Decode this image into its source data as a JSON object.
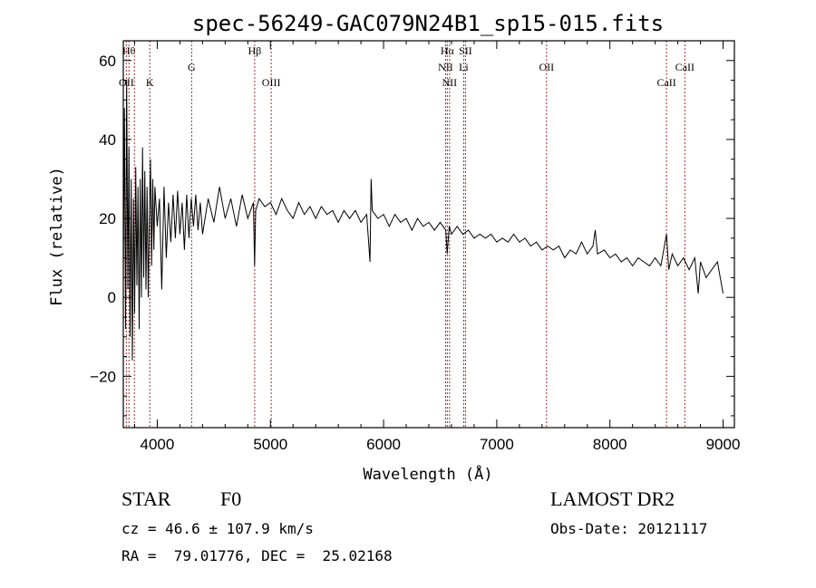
{
  "chart_data": {
    "type": "line",
    "title": "spec-56249-GAC079N24B1_sp15-015.fits",
    "xlabel": "Wavelength (Å)",
    "ylabel": "Flux (relative)",
    "xlim": [
      3700,
      9100
    ],
    "ylim": [
      -33,
      65
    ],
    "xticks": [
      4000,
      5000,
      6000,
      7000,
      8000,
      9000
    ],
    "yticks": [
      -20,
      0,
      20,
      40,
      60
    ],
    "grid": false,
    "series": [
      {
        "values": [
          [
            3700,
            5
          ],
          [
            3710,
            48
          ],
          [
            3720,
            -8
          ],
          [
            3730,
            55
          ],
          [
            3740,
            2
          ],
          [
            3750,
            38
          ],
          [
            3760,
            -10
          ],
          [
            3770,
            30
          ],
          [
            3780,
            -16
          ],
          [
            3790,
            25
          ],
          [
            3800,
            -4
          ],
          [
            3810,
            33
          ],
          [
            3820,
            3
          ],
          [
            3830,
            28
          ],
          [
            3840,
            -8
          ],
          [
            3850,
            30
          ],
          [
            3860,
            0
          ],
          [
            3870,
            38
          ],
          [
            3880,
            5
          ],
          [
            3890,
            32
          ],
          [
            3900,
            2
          ],
          [
            3910,
            28
          ],
          [
            3920,
            0
          ],
          [
            3930,
            20
          ],
          [
            3940,
            35
          ],
          [
            3950,
            8
          ],
          [
            3960,
            30
          ],
          [
            3970,
            12
          ],
          [
            3980,
            28
          ],
          [
            4000,
            18
          ],
          [
            4020,
            25
          ],
          [
            4040,
            2
          ],
          [
            4060,
            28
          ],
          [
            4080,
            10
          ],
          [
            4100,
            24
          ],
          [
            4120,
            14
          ],
          [
            4140,
            26
          ],
          [
            4160,
            15
          ],
          [
            4180,
            27
          ],
          [
            4200,
            16
          ],
          [
            4220,
            24
          ],
          [
            4240,
            12
          ],
          [
            4260,
            26
          ],
          [
            4280,
            15
          ],
          [
            4300,
            25
          ],
          [
            4320,
            18
          ],
          [
            4340,
            26
          ],
          [
            4360,
            17
          ],
          [
            4380,
            24
          ],
          [
            4400,
            16
          ],
          [
            4450,
            25
          ],
          [
            4500,
            19
          ],
          [
            4550,
            28
          ],
          [
            4600,
            20
          ],
          [
            4650,
            25
          ],
          [
            4700,
            18
          ],
          [
            4750,
            26
          ],
          [
            4800,
            20
          ],
          [
            4850,
            24
          ],
          [
            4860,
            8
          ],
          [
            4870,
            22
          ],
          [
            4900,
            25
          ],
          [
            4950,
            23
          ],
          [
            5000,
            24
          ],
          [
            5050,
            21
          ],
          [
            5100,
            25
          ],
          [
            5150,
            22
          ],
          [
            5200,
            20
          ],
          [
            5250,
            24
          ],
          [
            5300,
            21
          ],
          [
            5350,
            23
          ],
          [
            5400,
            20
          ],
          [
            5450,
            23
          ],
          [
            5500,
            21
          ],
          [
            5550,
            22
          ],
          [
            5600,
            19
          ],
          [
            5650,
            22
          ],
          [
            5700,
            20
          ],
          [
            5750,
            22
          ],
          [
            5800,
            19
          ],
          [
            5850,
            21
          ],
          [
            5880,
            9
          ],
          [
            5890,
            30
          ],
          [
            5900,
            22
          ],
          [
            5950,
            20
          ],
          [
            6000,
            21
          ],
          [
            6050,
            18
          ],
          [
            6100,
            21
          ],
          [
            6150,
            19
          ],
          [
            6200,
            20
          ],
          [
            6250,
            17
          ],
          [
            6300,
            20
          ],
          [
            6350,
            18
          ],
          [
            6400,
            19
          ],
          [
            6450,
            17
          ],
          [
            6500,
            19
          ],
          [
            6550,
            17
          ],
          [
            6562,
            11
          ],
          [
            6580,
            18
          ],
          [
            6600,
            16
          ],
          [
            6650,
            18
          ],
          [
            6700,
            16
          ],
          [
            6750,
            17
          ],
          [
            6800,
            15
          ],
          [
            6850,
            16
          ],
          [
            6900,
            15
          ],
          [
            6950,
            16
          ],
          [
            7000,
            14
          ],
          [
            7050,
            15
          ],
          [
            7100,
            14
          ],
          [
            7150,
            16
          ],
          [
            7200,
            14
          ],
          [
            7250,
            15
          ],
          [
            7300,
            13
          ],
          [
            7350,
            14
          ],
          [
            7400,
            12
          ],
          [
            7450,
            13
          ],
          [
            7500,
            12
          ],
          [
            7550,
            13
          ],
          [
            7600,
            10
          ],
          [
            7650,
            12
          ],
          [
            7700,
            11
          ],
          [
            7750,
            14
          ],
          [
            7800,
            11
          ],
          [
            7850,
            13
          ],
          [
            7870,
            17
          ],
          [
            7890,
            11
          ],
          [
            7950,
            12
          ],
          [
            8000,
            10
          ],
          [
            8050,
            11
          ],
          [
            8100,
            9
          ],
          [
            8150,
            10
          ],
          [
            8200,
            8
          ],
          [
            8250,
            10
          ],
          [
            8300,
            9
          ],
          [
            8350,
            8
          ],
          [
            8400,
            10
          ],
          [
            8450,
            8
          ],
          [
            8500,
            16
          ],
          [
            8520,
            7
          ],
          [
            8550,
            11
          ],
          [
            8600,
            8
          ],
          [
            8650,
            10
          ],
          [
            8700,
            7
          ],
          [
            8750,
            10
          ],
          [
            8780,
            1
          ],
          [
            8800,
            9
          ],
          [
            8850,
            5
          ],
          [
            8900,
            7
          ],
          [
            8950,
            9
          ],
          [
            9000,
            1
          ]
        ]
      }
    ],
    "line_marks": [
      {
        "x": 3727,
        "label": "OII",
        "row": 2
      },
      {
        "x": 3750,
        "label": "Hθ",
        "row": 0
      },
      {
        "x": 3798,
        "label": "",
        "row": 0
      },
      {
        "x": 3934,
        "label": "K",
        "row": 2
      },
      {
        "x": 4304,
        "label": "G",
        "row": 1
      },
      {
        "x": 4861,
        "label": "Hβ",
        "row": 0
      },
      {
        "x": 5007,
        "label": "OIII",
        "row": 2
      },
      {
        "x": 6548,
        "label": "NII",
        "row": 1
      },
      {
        "x": 6563,
        "label": "Hα",
        "row": 0
      },
      {
        "x": 6583,
        "label": "NII",
        "row": 2
      },
      {
        "x": 6708,
        "label": "Li",
        "row": 1
      },
      {
        "x": 6724,
        "label": "SII",
        "row": 0
      },
      {
        "x": 7440,
        "label": "OII",
        "row": 1
      },
      {
        "x": 8500,
        "label": "CaII",
        "row": 2
      },
      {
        "x": 8662,
        "label": "CaII",
        "row": 1
      }
    ]
  },
  "info": {
    "class": "STAR",
    "subclass": "F0",
    "survey": "LAMOST DR2",
    "cz": "cz = 46.6 ± 107.9 km/s",
    "obsdate": "Obs-Date: 20121117",
    "radec": "RA =  79.01776, DEC =  25.02168"
  },
  "colors": {
    "line": "#000000",
    "marker": "#a03030"
  }
}
